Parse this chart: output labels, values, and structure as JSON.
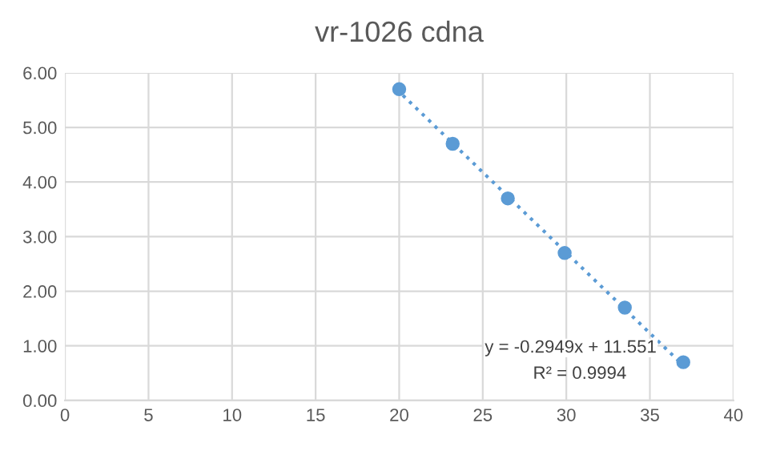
{
  "chart_data": {
    "type": "scatter",
    "title": "vr-1026 cdna",
    "series": [
      {
        "color": "#5b9bd5",
        "marker": "circle",
        "x": [
          20.0,
          23.2,
          26.5,
          29.9,
          33.5,
          37.0
        ],
        "values": [
          5.7,
          4.7,
          3.7,
          2.7,
          1.7,
          0.7
        ]
      },
      {
        "type": "line",
        "color": "#5b9bd5",
        "line_style": "dotted",
        "marker": "none",
        "x": [
          19.84,
          36.8
        ],
        "values": [
          5.7,
          0.7
        ]
      }
    ],
    "xlim": [
      0,
      40
    ],
    "xticks": [
      0,
      5,
      10,
      15,
      20,
      25,
      30,
      35,
      40
    ],
    "ylim": [
      0,
      6
    ],
    "yticks": [
      {
        "value": 0,
        "label": "0.00"
      },
      {
        "value": 1,
        "label": "1.00"
      },
      {
        "value": 2,
        "label": "2.00"
      },
      {
        "value": 3,
        "label": "3.00"
      },
      {
        "value": 4,
        "label": "4.00"
      },
      {
        "value": 5,
        "label": "5.00"
      },
      {
        "value": 6,
        "label": "6.00"
      }
    ],
    "grid": true,
    "legend": false,
    "annotations": [
      "y = -0.2949x + 11.551",
      "R² = 0.9994"
    ]
  }
}
